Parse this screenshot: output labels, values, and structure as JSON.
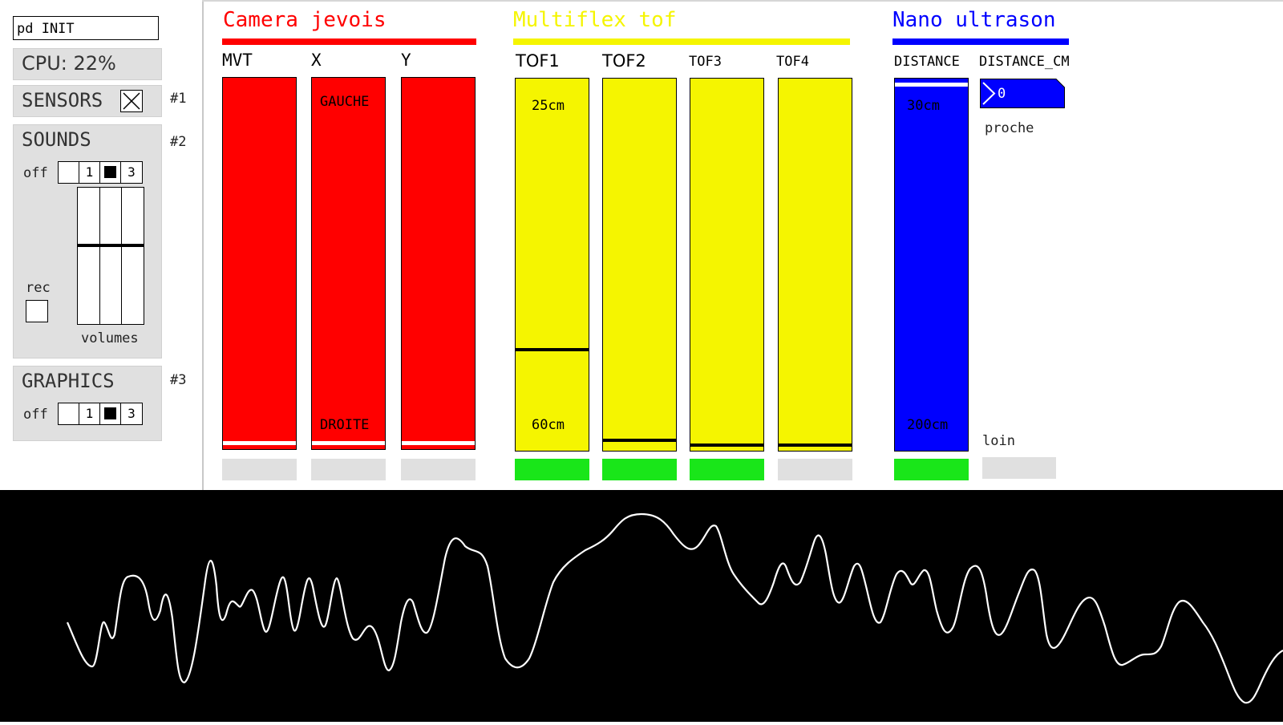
{
  "left": {
    "pd_input": "pd INIT",
    "cpu": "CPU: 22%",
    "sensors": {
      "label": "SENSORS",
      "tag": "#1",
      "checked": true
    },
    "sounds": {
      "label": "SOUNDS",
      "tag": "#2",
      "off_label": "off",
      "radio": [
        "",
        "1",
        "",
        "3"
      ],
      "selected_index": 2,
      "rec_label": "rec",
      "volumes_label": "volumes",
      "volume_levels": [
        0.58,
        0.58,
        0.58
      ]
    },
    "graphics": {
      "label": "GRAPHICS",
      "tag": "#3",
      "off_label": "off",
      "radio": [
        "",
        "1",
        "",
        "3"
      ],
      "selected_index": 2
    }
  },
  "groups": {
    "camera": {
      "title": "Camera jevois",
      "color": "#ff0000"
    },
    "tof": {
      "title": "Multiflex tof",
      "color": "#f5f500"
    },
    "nano": {
      "title": "Nano ultrason",
      "color": "#0000ff"
    }
  },
  "meters": {
    "mvt": {
      "label": "MVT",
      "level": 0.01
    },
    "x": {
      "label": "X",
      "level": 0.01,
      "top_label": "GAUCHE",
      "bottom_label": "DROITE"
    },
    "y": {
      "label": "Y",
      "level": 0.01
    },
    "tof1": {
      "label": "TOF1",
      "level": 0.27,
      "top_label": "25cm",
      "bottom_label": "60cm"
    },
    "tof2": {
      "label": "TOF2",
      "level": 0.025
    },
    "tof3": {
      "label": "TOF3",
      "level": 0.01
    },
    "tof4": {
      "label": "TOF4",
      "level": 0.01
    },
    "distance": {
      "label": "DISTANCE",
      "level": 0.99,
      "top_label": "30cm",
      "bottom_label": "200cm"
    }
  },
  "distance_cm": {
    "label": "DISTANCE_CM",
    "value": "0",
    "near_label": "proche",
    "far_label": "loin"
  },
  "bangs": {
    "active_color": "#19e619",
    "inactive_color": "#e0e0e0"
  }
}
